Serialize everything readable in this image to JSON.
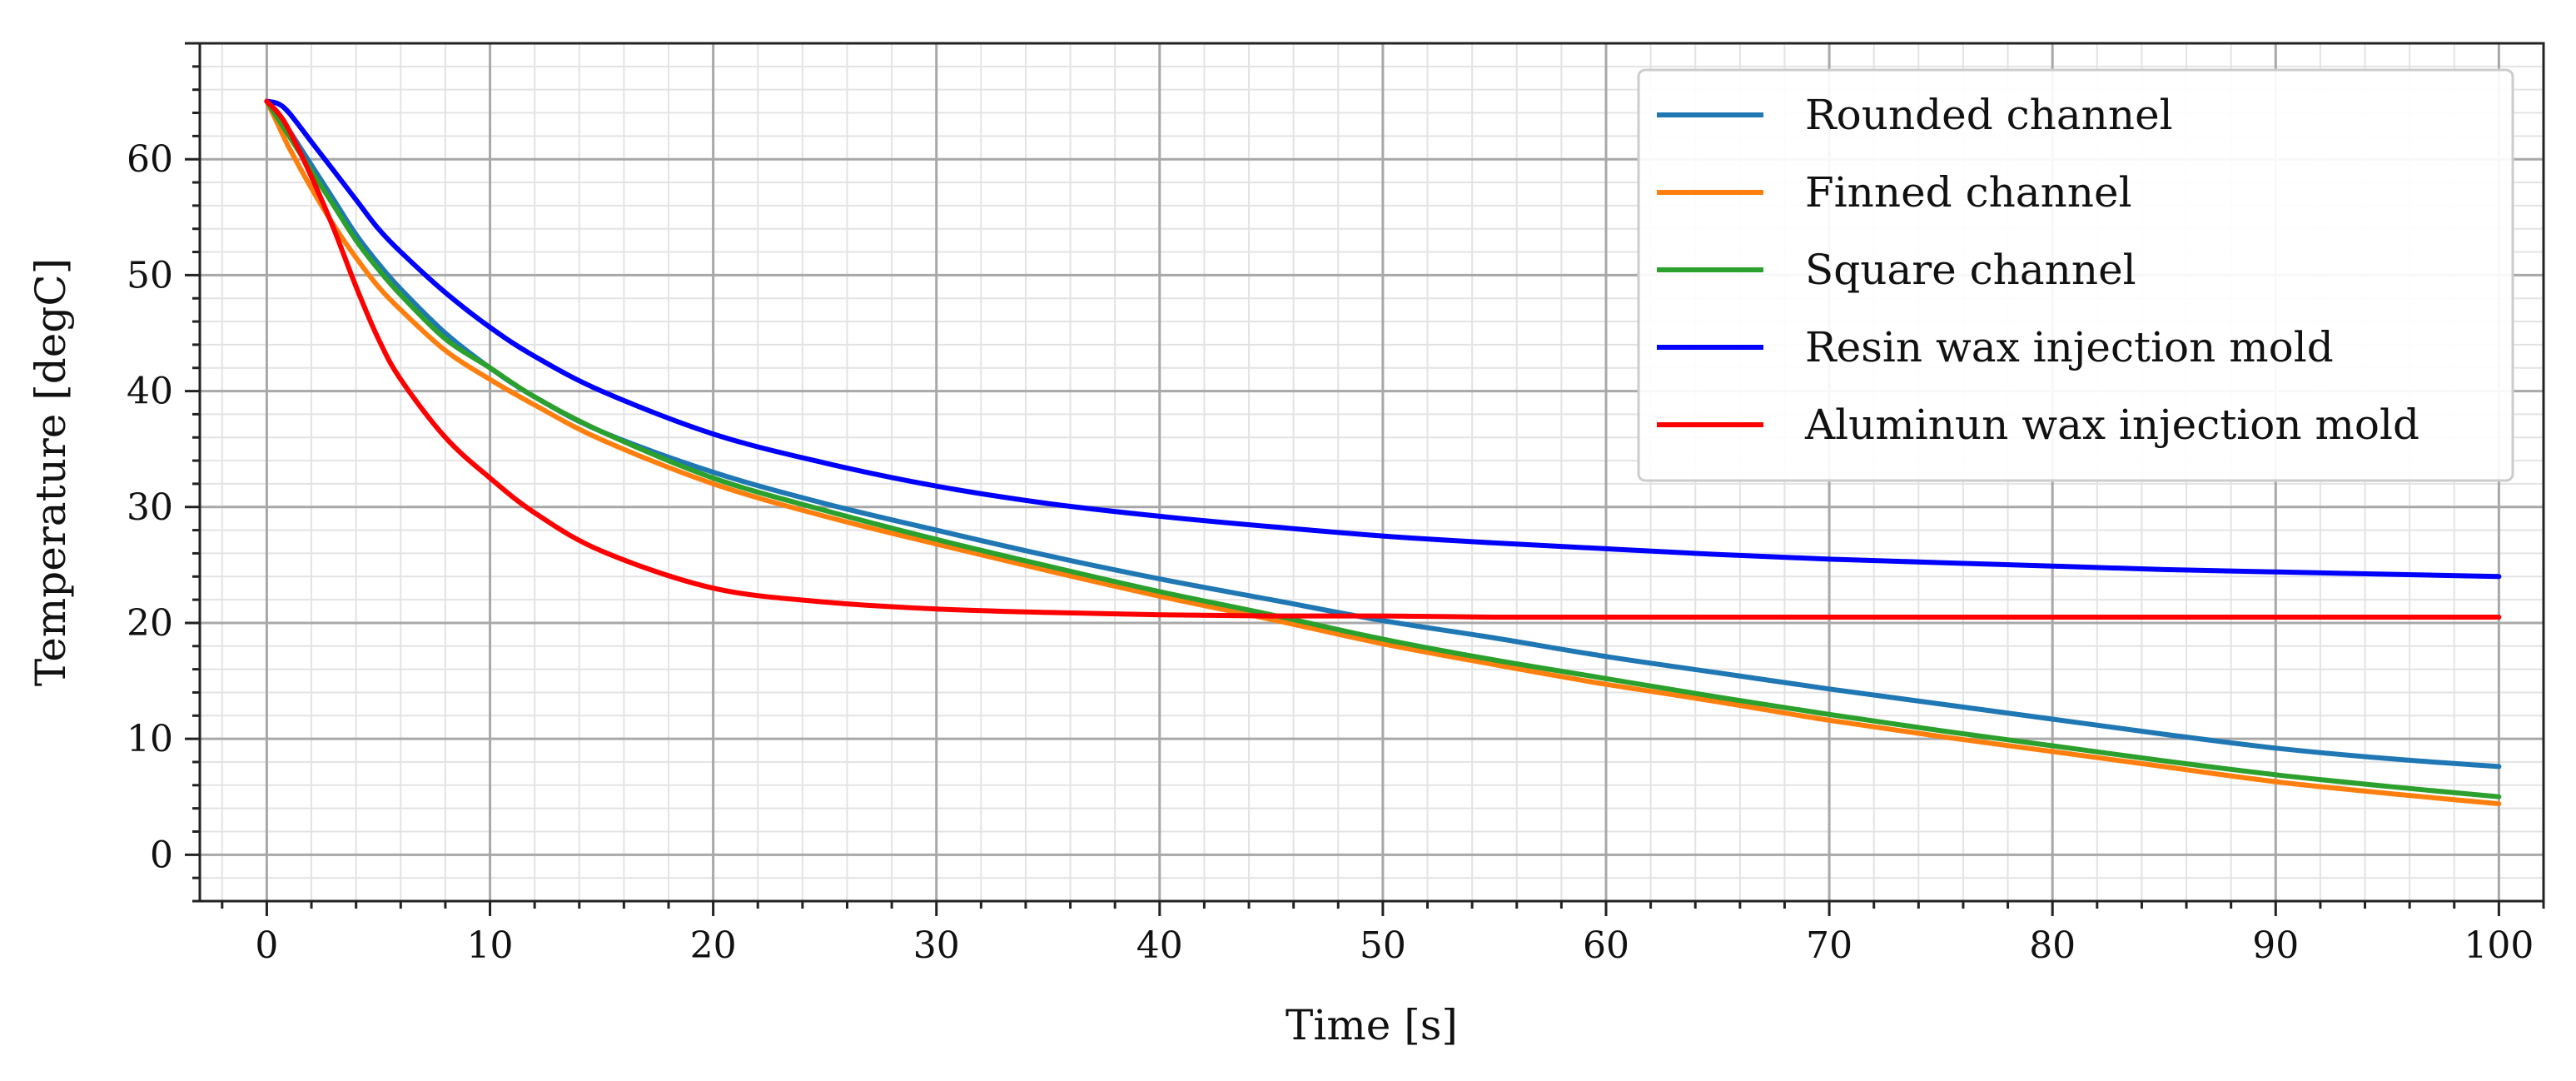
{
  "chart_data": {
    "type": "line",
    "title": "",
    "xlabel": "Time [s]",
    "ylabel": "Temperature [degC]",
    "xlim": [
      -3,
      102
    ],
    "ylim": [
      -4,
      70
    ],
    "xticks": [
      0,
      10,
      20,
      30,
      40,
      50,
      60,
      70,
      80,
      90,
      100
    ],
    "yticks": [
      0,
      10,
      20,
      30,
      40,
      50,
      60
    ],
    "grid": {
      "major": true,
      "minor": true
    },
    "legend_position": "top-right",
    "x": [
      0,
      0.5,
      1,
      2,
      3,
      4,
      5,
      6,
      8,
      10,
      12,
      15,
      20,
      25,
      30,
      35,
      40,
      45,
      50,
      55,
      60,
      65,
      70,
      75,
      80,
      85,
      90,
      95,
      100
    ],
    "series": [
      {
        "name": "Rounded channel",
        "color": "#1f77b4",
        "values": [
          65,
          64,
          62.5,
          59.5,
          56.5,
          53.5,
          51,
          48.8,
          45,
          42,
          39.5,
          36.5,
          33,
          30.3,
          28,
          25.8,
          23.8,
          22,
          20.2,
          18.7,
          17.1,
          15.7,
          14.3,
          13,
          11.7,
          10.4,
          9.2,
          8.3,
          7.6
        ]
      },
      {
        "name": "Finned channel",
        "color": "#ff7f0e",
        "values": [
          65,
          63,
          61,
          57.5,
          54.3,
          51.5,
          49,
          47,
          43.5,
          41,
          38.8,
          35.8,
          32,
          29.2,
          26.8,
          24.5,
          22.3,
          20.3,
          18.2,
          16.4,
          14.7,
          13.2,
          11.6,
          10.2,
          8.9,
          7.6,
          6.3,
          5.3,
          4.4
        ]
      },
      {
        "name": "Square channel",
        "color": "#2ca02c",
        "values": [
          65,
          63.5,
          62,
          59,
          56,
          53,
          50.5,
          48.3,
          44.5,
          42,
          39.5,
          36.5,
          32.5,
          29.7,
          27.2,
          24.9,
          22.7,
          20.7,
          18.6,
          16.8,
          15.2,
          13.6,
          12.1,
          10.7,
          9.4,
          8.1,
          6.9,
          5.9,
          5
        ]
      },
      {
        "name": "Resin wax injection mold",
        "color": "#0000ff",
        "values": [
          65,
          64.8,
          64,
          61.5,
          59,
          56.5,
          54,
          52,
          48.5,
          45.5,
          43,
          40,
          36.3,
          33.8,
          31.8,
          30.3,
          29.2,
          28.3,
          27.5,
          26.9,
          26.4,
          25.9,
          25.5,
          25.2,
          24.9,
          24.6,
          24.4,
          24.2,
          24
        ]
      },
      {
        "name": "Aluminun wax injection mold",
        "color": "#ff0000",
        "values": [
          65,
          64,
          62.5,
          58.5,
          54,
          49,
          44.5,
          41,
          36,
          32.5,
          29.5,
          26.2,
          23,
          21.8,
          21.2,
          20.9,
          20.7,
          20.6,
          20.6,
          20.5,
          20.5,
          20.5,
          20.5,
          20.5,
          20.5,
          20.5,
          20.5,
          20.5,
          20.5
        ]
      }
    ]
  }
}
